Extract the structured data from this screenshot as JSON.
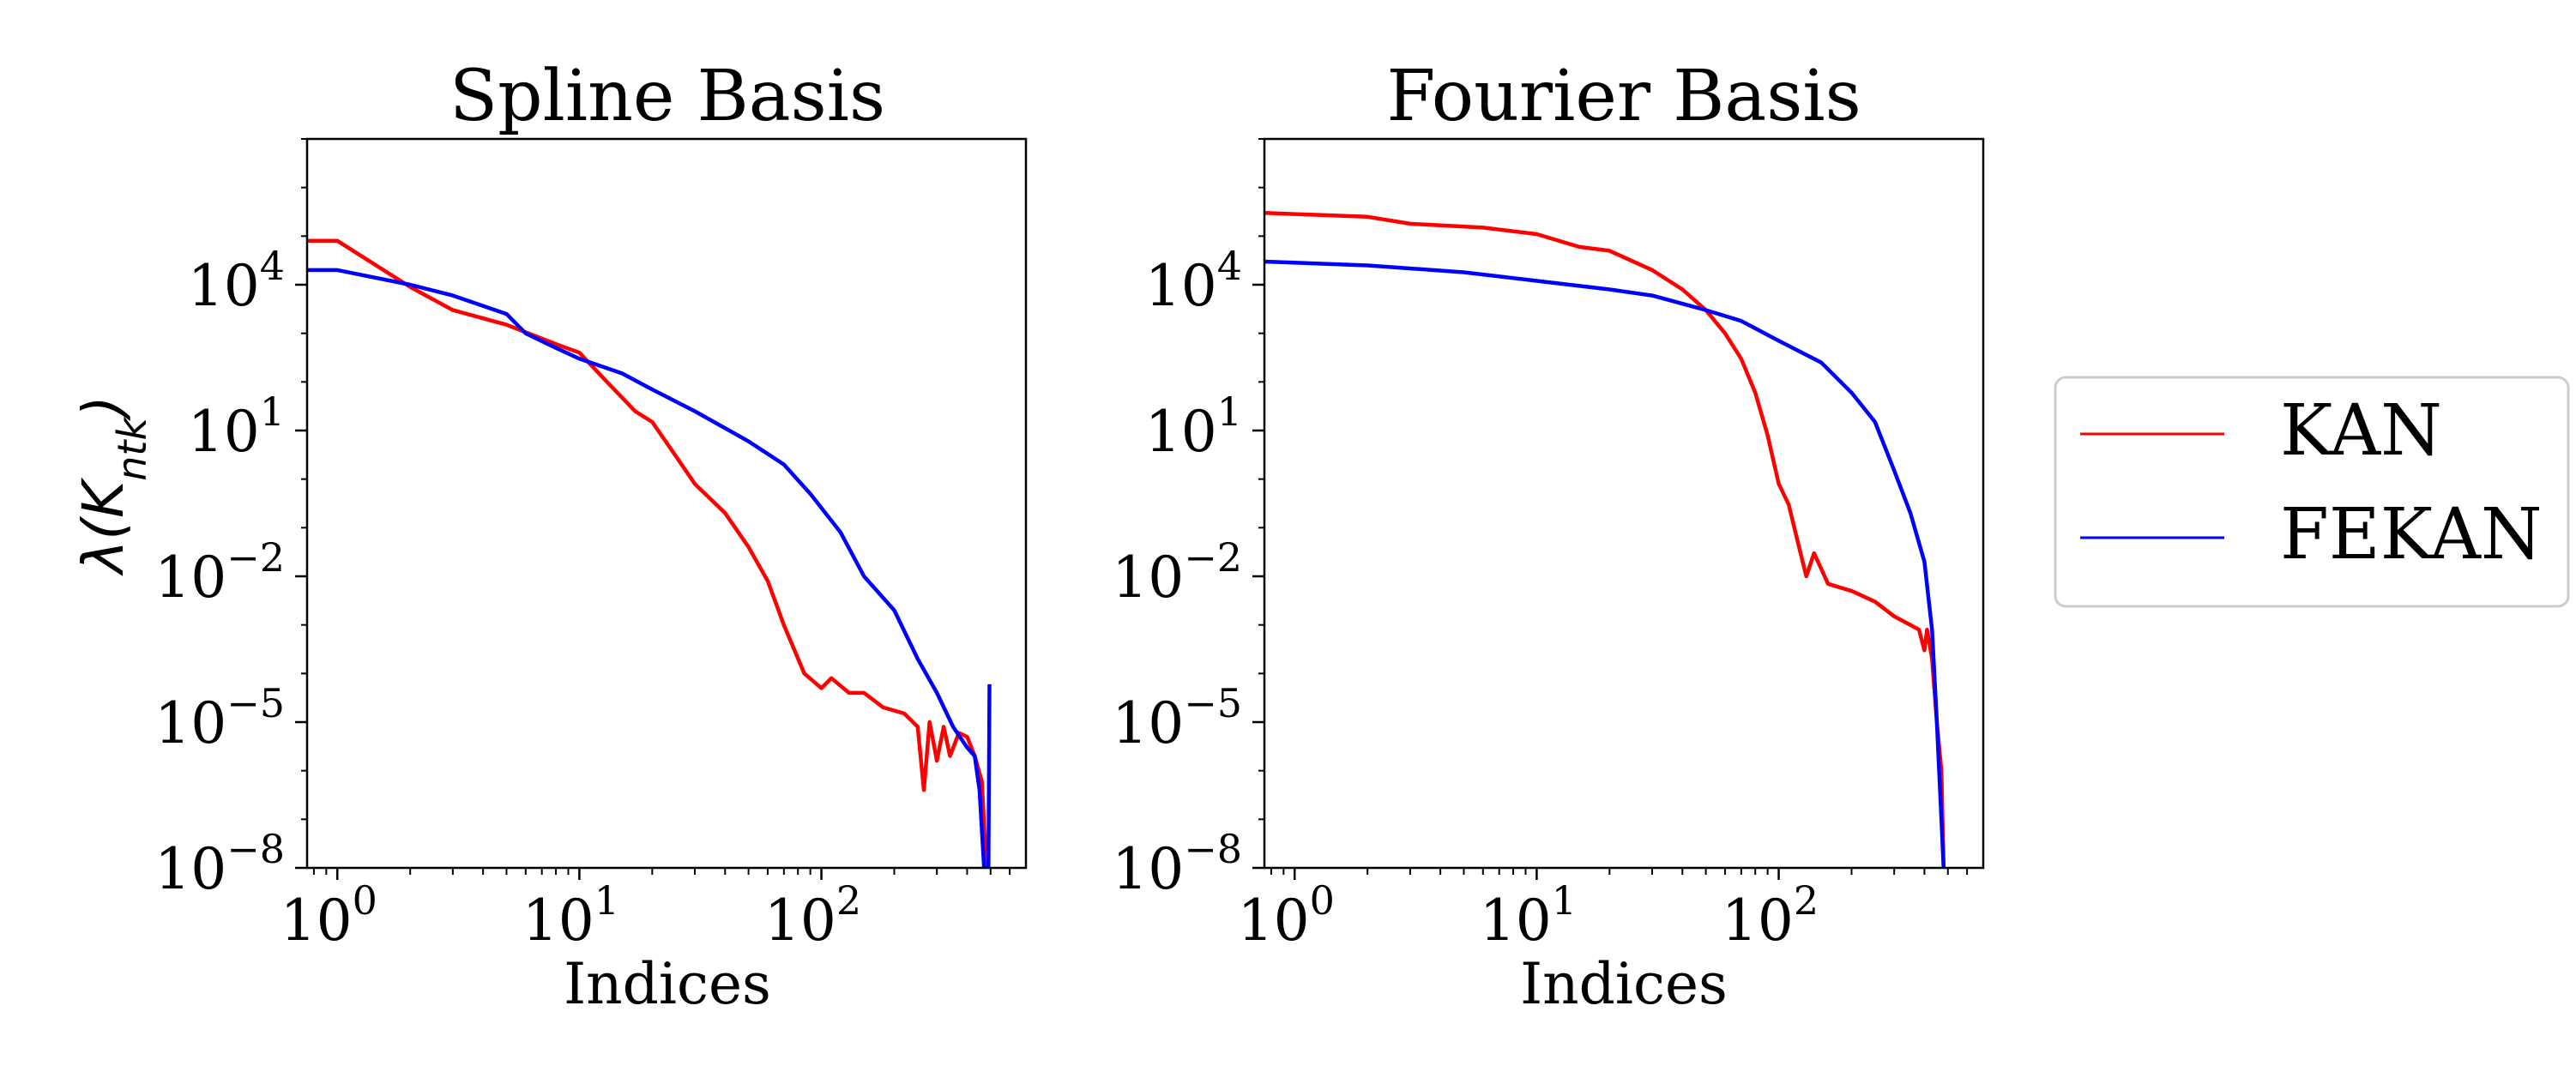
{
  "figure": {
    "ylabel_main": "λ(K",
    "ylabel_sub": "ntk",
    "ylabel_close": ")",
    "legend": {
      "placement": "right",
      "items": [
        {
          "label": "KAN",
          "color": "#ff0000"
        },
        {
          "label": "FEKAN",
          "color": "#0000ff"
        }
      ]
    }
  },
  "chart_data": [
    {
      "type": "line",
      "title": "Spline Basis",
      "xlabel": "Indices",
      "ylabel": "λ(K_ntk)",
      "xscale": "log",
      "yscale": "log",
      "xlim": [
        0.75,
        700
      ],
      "ylim": [
        1e-08,
        10000000.0
      ],
      "xticks": [
        {
          "value": 1,
          "base": "10",
          "exp": "0"
        },
        {
          "value": 10,
          "base": "10",
          "exp": "1"
        },
        {
          "value": 100,
          "base": "10",
          "exp": "2"
        }
      ],
      "yticks": [
        {
          "value": 10000.0,
          "base": "10",
          "exp": "4"
        },
        {
          "value": 10,
          "base": "10",
          "exp": "1"
        },
        {
          "value": 0.01,
          "base": "10",
          "exp": "−2"
        },
        {
          "value": 1e-05,
          "base": "10",
          "exp": "−5"
        },
        {
          "value": 1e-08,
          "base": "10",
          "exp": "−8"
        }
      ],
      "grid": false,
      "series": [
        {
          "name": "KAN",
          "color": "#ff0000",
          "points": [
            [
              0.75,
              80000
            ],
            [
              1,
              80000
            ],
            [
              2,
              9000
            ],
            [
              3,
              3000
            ],
            [
              5,
              1500
            ],
            [
              8,
              600
            ],
            [
              10,
              400
            ],
            [
              13,
              100
            ],
            [
              17,
              25
            ],
            [
              20,
              15
            ],
            [
              25,
              3
            ],
            [
              30,
              0.8
            ],
            [
              40,
              0.2
            ],
            [
              50,
              0.04
            ],
            [
              60,
              0.008
            ],
            [
              70,
              0.001
            ],
            [
              85,
              0.0001
            ],
            [
              100,
              5e-05
            ],
            [
              110,
              8e-05
            ],
            [
              130,
              4e-05
            ],
            [
              150,
              4e-05
            ],
            [
              180,
              2e-05
            ],
            [
              220,
              1.5e-05
            ],
            [
              250,
              8e-06
            ],
            [
              265,
              4e-07
            ],
            [
              280,
              1e-05
            ],
            [
              300,
              1.6e-06
            ],
            [
              320,
              8e-06
            ],
            [
              340,
              2e-06
            ],
            [
              370,
              6e-06
            ],
            [
              400,
              5e-06
            ],
            [
              430,
              2e-06
            ],
            [
              460,
              6e-07
            ],
            [
              480,
              1e-09
            ]
          ]
        },
        {
          "name": "FEKAN",
          "color": "#0000ff",
          "points": [
            [
              0.75,
              20000
            ],
            [
              1,
              20000
            ],
            [
              2,
              10000
            ],
            [
              3,
              6000
            ],
            [
              5,
              2500
            ],
            [
              6,
              1000
            ],
            [
              8,
              500
            ],
            [
              10,
              300
            ],
            [
              15,
              150
            ],
            [
              20,
              70
            ],
            [
              30,
              25
            ],
            [
              50,
              6
            ],
            [
              70,
              2
            ],
            [
              90,
              0.5
            ],
            [
              120,
              0.08
            ],
            [
              150,
              0.01
            ],
            [
              200,
              0.002
            ],
            [
              250,
              0.0002
            ],
            [
              300,
              4e-05
            ],
            [
              350,
              8e-06
            ],
            [
              400,
              3e-06
            ],
            [
              430,
              2e-06
            ],
            [
              450,
              4e-07
            ],
            [
              470,
              1e-09
            ]
          ]
        },
        {
          "name": "FEKAN",
          "color": "#0000ff",
          "points": [
            [
              490,
              1e-09
            ],
            [
              495,
              6e-05
            ]
          ]
        }
      ]
    },
    {
      "type": "line",
      "title": "Fourier Basis",
      "xlabel": "Indices",
      "ylabel": "",
      "xscale": "log",
      "yscale": "log",
      "xlim": [
        0.75,
        700
      ],
      "ylim": [
        1e-08,
        10000000.0
      ],
      "xticks": [
        {
          "value": 1,
          "base": "10",
          "exp": "0"
        },
        {
          "value": 10,
          "base": "10",
          "exp": "1"
        },
        {
          "value": 100,
          "base": "10",
          "exp": "2"
        }
      ],
      "yticks": [
        {
          "value": 10000.0,
          "base": "10",
          "exp": "4"
        },
        {
          "value": 10,
          "base": "10",
          "exp": "1"
        },
        {
          "value": 0.01,
          "base": "10",
          "exp": "−2"
        },
        {
          "value": 1e-05,
          "base": "10",
          "exp": "−5"
        },
        {
          "value": 1e-08,
          "base": "10",
          "exp": "−8"
        }
      ],
      "grid": false,
      "series": [
        {
          "name": "KAN",
          "color": "#ff0000",
          "points": [
            [
              0.75,
              300000
            ],
            [
              2,
              250000
            ],
            [
              3,
              180000
            ],
            [
              6,
              150000
            ],
            [
              10,
              110000
            ],
            [
              15,
              60000
            ],
            [
              20,
              50000
            ],
            [
              30,
              20000
            ],
            [
              40,
              8000
            ],
            [
              50,
              3000
            ],
            [
              60,
              1000
            ],
            [
              70,
              300
            ],
            [
              80,
              60
            ],
            [
              90,
              8
            ],
            [
              100,
              0.8
            ],
            [
              110,
              0.3
            ],
            [
              120,
              0.05
            ],
            [
              130,
              0.01
            ],
            [
              140,
              0.03
            ],
            [
              160,
              0.007
            ],
            [
              200,
              0.005
            ],
            [
              250,
              0.003
            ],
            [
              300,
              0.0015
            ],
            [
              350,
              0.001
            ],
            [
              380,
              0.0008
            ],
            [
              400,
              0.0003
            ],
            [
              410,
              0.0008
            ],
            [
              430,
              0.0002
            ],
            [
              450,
              1e-05
            ],
            [
              470,
              1e-06
            ],
            [
              480,
              1e-09
            ]
          ]
        },
        {
          "name": "FEKAN",
          "color": "#0000ff",
          "points": [
            [
              0.75,
              30000
            ],
            [
              2,
              25000
            ],
            [
              5,
              18000
            ],
            [
              10,
              12000
            ],
            [
              20,
              8000
            ],
            [
              30,
              6000
            ],
            [
              50,
              3000
            ],
            [
              70,
              1800
            ],
            [
              100,
              700
            ],
            [
              150,
              250
            ],
            [
              200,
              60
            ],
            [
              250,
              15
            ],
            [
              300,
              1.5
            ],
            [
              350,
              0.2
            ],
            [
              400,
              0.02
            ],
            [
              430,
              0.0008
            ],
            [
              450,
              1e-05
            ],
            [
              470,
              1e-07
            ],
            [
              480,
              1e-09
            ]
          ]
        }
      ]
    }
  ]
}
